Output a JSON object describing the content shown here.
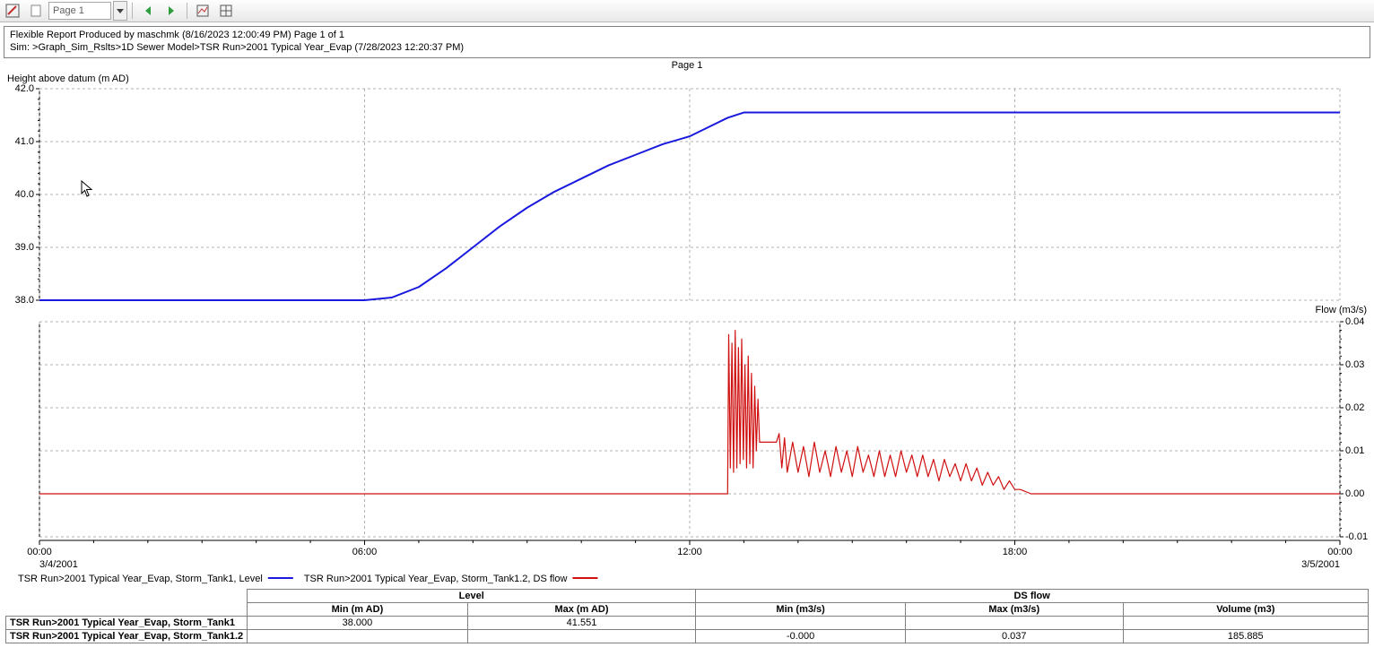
{
  "toolbar": {
    "page_selector": "Page 1"
  },
  "header": {
    "line1": "Flexible Report Produced by maschmk (8/16/2023 12:00:49 PM) Page 1 of 1",
    "line2": "Sim: >Graph_Sim_Rslts>1D Sewer Model>TSR Run>2001 Typical Year_Evap (7/28/2023 12:20:37 PM)"
  },
  "page_label": "Page 1",
  "chart": {
    "y1_title": "Height above datum (m AD)",
    "y2_title": "Flow (m3/s)",
    "x_start_label": "3/4/2001",
    "x_end_label": "3/5/2001",
    "level": {
      "color": "#1a1adf",
      "ylim": [
        38.0,
        42.0
      ],
      "ytick_step": 1.0,
      "ytick_labels": [
        "42.0",
        "41.0",
        "40.0",
        "39.0",
        "38.0"
      ],
      "data": [
        [
          0.0,
          38.0
        ],
        [
          6.0,
          38.0
        ],
        [
          6.5,
          38.05
        ],
        [
          7.0,
          38.25
        ],
        [
          7.5,
          38.6
        ],
        [
          8.0,
          39.0
        ],
        [
          8.5,
          39.4
        ],
        [
          9.0,
          39.75
        ],
        [
          9.5,
          40.05
        ],
        [
          10.0,
          40.3
        ],
        [
          10.5,
          40.55
        ],
        [
          11.0,
          40.75
        ],
        [
          11.5,
          40.95
        ],
        [
          12.0,
          41.1
        ],
        [
          12.3,
          41.25
        ],
        [
          12.7,
          41.45
        ],
        [
          13.0,
          41.55
        ],
        [
          24.0,
          41.55
        ]
      ]
    },
    "flow": {
      "color": "#d01010",
      "ylim": [
        -0.01,
        0.04
      ],
      "ytick_step": 0.01,
      "ytick_labels": [
        "0.04",
        "0.03",
        "0.02",
        "0.01",
        "0.00",
        "-0.01"
      ],
      "data": [
        [
          0.0,
          0.0
        ],
        [
          12.7,
          0.0
        ],
        [
          12.72,
          0.037
        ],
        [
          12.75,
          0.006
        ],
        [
          12.78,
          0.035
        ],
        [
          12.81,
          0.005
        ],
        [
          12.84,
          0.038
        ],
        [
          12.87,
          0.006
        ],
        [
          12.9,
          0.034
        ],
        [
          12.93,
          0.007
        ],
        [
          12.96,
          0.036
        ],
        [
          12.99,
          0.008
        ],
        [
          13.02,
          0.03
        ],
        [
          13.05,
          0.006
        ],
        [
          13.08,
          0.032
        ],
        [
          13.11,
          0.007
        ],
        [
          13.14,
          0.028
        ],
        [
          13.17,
          0.006
        ],
        [
          13.2,
          0.025
        ],
        [
          13.23,
          0.01
        ],
        [
          13.26,
          0.022
        ],
        [
          13.29,
          0.012
        ],
        [
          13.35,
          0.012
        ],
        [
          13.4,
          0.012
        ],
        [
          13.6,
          0.012
        ],
        [
          13.65,
          0.014
        ],
        [
          13.7,
          0.006
        ],
        [
          13.75,
          0.013
        ],
        [
          13.8,
          0.005
        ],
        [
          13.9,
          0.012
        ],
        [
          14.0,
          0.005
        ],
        [
          14.1,
          0.011
        ],
        [
          14.2,
          0.004
        ],
        [
          14.3,
          0.012
        ],
        [
          14.4,
          0.005
        ],
        [
          14.5,
          0.01
        ],
        [
          14.6,
          0.004
        ],
        [
          14.7,
          0.011
        ],
        [
          14.8,
          0.005
        ],
        [
          14.9,
          0.01
        ],
        [
          15.0,
          0.004
        ],
        [
          15.1,
          0.011
        ],
        [
          15.2,
          0.005
        ],
        [
          15.3,
          0.009
        ],
        [
          15.4,
          0.004
        ],
        [
          15.5,
          0.01
        ],
        [
          15.6,
          0.004
        ],
        [
          15.7,
          0.009
        ],
        [
          15.8,
          0.004
        ],
        [
          15.9,
          0.01
        ],
        [
          16.0,
          0.005
        ],
        [
          16.1,
          0.009
        ],
        [
          16.2,
          0.004
        ],
        [
          16.3,
          0.009
        ],
        [
          16.4,
          0.004
        ],
        [
          16.5,
          0.008
        ],
        [
          16.6,
          0.003
        ],
        [
          16.7,
          0.008
        ],
        [
          16.8,
          0.004
        ],
        [
          16.9,
          0.007
        ],
        [
          17.0,
          0.003
        ],
        [
          17.1,
          0.007
        ],
        [
          17.2,
          0.003
        ],
        [
          17.3,
          0.006
        ],
        [
          17.4,
          0.002
        ],
        [
          17.5,
          0.005
        ],
        [
          17.6,
          0.002
        ],
        [
          17.7,
          0.004
        ],
        [
          17.8,
          0.001
        ],
        [
          17.9,
          0.003
        ],
        [
          18.0,
          0.001
        ],
        [
          18.1,
          0.001
        ],
        [
          18.3,
          0.0
        ],
        [
          24.0,
          0.0
        ]
      ]
    },
    "xticks": [
      {
        "h": 0,
        "label": "00:00"
      },
      {
        "h": 6,
        "label": "06:00"
      },
      {
        "h": 12,
        "label": "12:00"
      },
      {
        "h": 18,
        "label": "18:00"
      },
      {
        "h": 24,
        "label": "00:00"
      }
    ],
    "legend": [
      {
        "text": "TSR Run>2001 Typical Year_Evap, Storm_Tank1, Level",
        "color": "#1a1adf"
      },
      {
        "text": "TSR Run>2001 Typical Year_Evap, Storm_Tank1.2, DS flow",
        "color": "#d01010"
      }
    ]
  },
  "table": {
    "group_headers": [
      "",
      "Level",
      "DS flow"
    ],
    "col_headers": [
      "",
      "Min (m AD)",
      "Max (m AD)",
      "Min (m3/s)",
      "Max (m3/s)",
      "Volume (m3)"
    ],
    "rows": [
      {
        "label": "TSR Run>2001 Typical Year_Evap, Storm_Tank1",
        "cells": [
          "38.000",
          "41.551",
          "",
          "",
          ""
        ]
      },
      {
        "label": "TSR Run>2001 Typical Year_Evap, Storm_Tank1.2",
        "cells": [
          "",
          "",
          "-0.000",
          "0.037",
          "185.885"
        ]
      }
    ]
  }
}
